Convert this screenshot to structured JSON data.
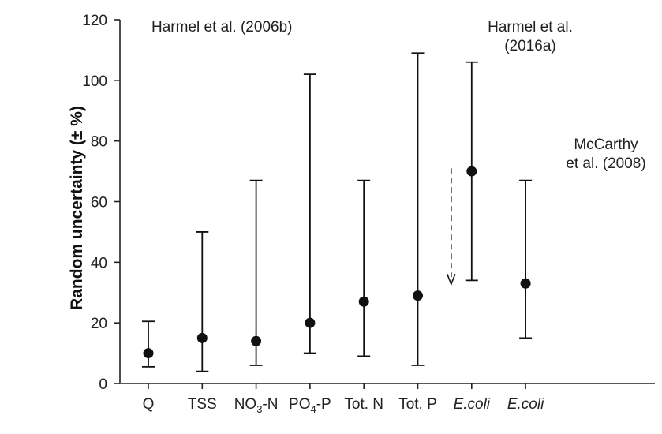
{
  "chart_data": {
    "type": "scatter",
    "title": "",
    "xlabel": "",
    "ylabel": "Random uncertainty (± %)",
    "ylim": [
      0,
      120
    ],
    "yticks": [
      0,
      20,
      40,
      60,
      80,
      100,
      120
    ],
    "grid": false,
    "categories": [
      {
        "pre": "Q",
        "sub": "",
        "post": "",
        "italic": false
      },
      {
        "pre": "TSS",
        "sub": "",
        "post": "",
        "italic": false
      },
      {
        "pre": "NO",
        "sub": "3",
        "post": "-N",
        "italic": false
      },
      {
        "pre": "PO",
        "sub": "4",
        "post": "-P",
        "italic": false
      },
      {
        "pre": "Tot. N",
        "sub": "",
        "post": "",
        "italic": false
      },
      {
        "pre": "Tot. P",
        "sub": "",
        "post": "",
        "italic": false
      },
      {
        "pre": "E.coli",
        "sub": "",
        "post": "",
        "italic": true
      },
      {
        "pre": "E.coli",
        "sub": "",
        "post": "",
        "italic": true
      }
    ],
    "series": [
      {
        "mean": [
          10,
          15,
          14,
          20,
          27,
          29,
          70,
          33
        ],
        "lower": [
          5.5,
          4,
          6,
          10,
          9,
          6,
          34,
          15
        ],
        "upper": [
          20.5,
          50,
          67,
          102,
          67,
          109,
          106,
          67
        ]
      }
    ],
    "arrow": {
      "category_index": 6,
      "from": 71,
      "to": 33,
      "style": "dashed"
    },
    "annotations": [
      {
        "lines": [
          "Harmel et al. (2006b)"
        ],
        "near_category": 0,
        "near_y": 120
      },
      {
        "lines": [
          "Harmel et al.",
          "(2016a)"
        ],
        "near_category": 6,
        "near_y": 120
      },
      {
        "lines": [
          "McCarthy",
          "et al. (2008)"
        ],
        "near_category": 7,
        "near_y": 80
      }
    ]
  }
}
